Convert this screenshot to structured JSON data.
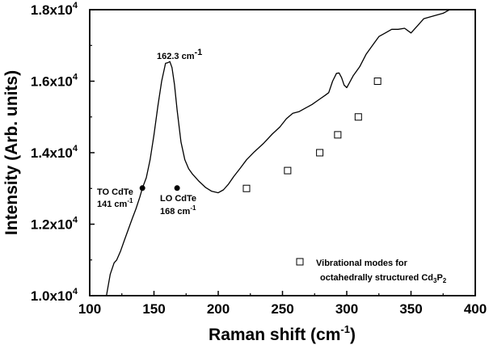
{
  "chart_data": {
    "type": "line",
    "xlabel": "Raman shift (cm",
    "xlabel_sup": "-1",
    "xlabel_close": ")",
    "ylabel": "Intensity (Arb. units)",
    "xlim": [
      100,
      400
    ],
    "ylim": [
      10000,
      18000
    ],
    "x_ticks": [
      100,
      150,
      200,
      250,
      300,
      350,
      400
    ],
    "y_ticks": [
      {
        "value": 10000,
        "mantissa": "1.0x10",
        "exp": "4"
      },
      {
        "value": 12000,
        "mantissa": "1.2x10",
        "exp": "4"
      },
      {
        "value": 14000,
        "mantissa": "1.4x10",
        "exp": "4"
      },
      {
        "value": 16000,
        "mantissa": "1.6x10",
        "exp": "4"
      },
      {
        "value": 18000,
        "mantissa": "1.8x10",
        "exp": "4"
      }
    ],
    "grid": false,
    "legend_position": "bottom-right",
    "series": [
      {
        "style": "line",
        "x": [
          113,
          116,
          119,
          121,
          124,
          127,
          130,
          133,
          136,
          139,
          141,
          144,
          147,
          150,
          153,
          156,
          159,
          161,
          162.3,
          164,
          166,
          168,
          171,
          174,
          177,
          180,
          185,
          190,
          195,
          200,
          204,
          208,
          212,
          217,
          222,
          228,
          235,
          242,
          248,
          253,
          258,
          263,
          268,
          273,
          279,
          283,
          286,
          289,
          292,
          294,
          296,
          298,
          300,
          302,
          305,
          310,
          315,
          320,
          325,
          330,
          335,
          340,
          345,
          350,
          355,
          360,
          365,
          370,
          375,
          380
        ],
        "y": [
          10000,
          10600,
          10920,
          11000,
          11250,
          11550,
          11850,
          12150,
          12430,
          12760,
          13010,
          13300,
          13800,
          14500,
          15300,
          16000,
          16500,
          16520,
          16550,
          16380,
          15900,
          15200,
          14300,
          13800,
          13550,
          13400,
          13200,
          13030,
          12920,
          12880,
          12960,
          13120,
          13330,
          13560,
          13800,
          14020,
          14250,
          14520,
          14720,
          14950,
          15100,
          15150,
          15250,
          15350,
          15500,
          15600,
          15680,
          16000,
          16220,
          16230,
          16100,
          15890,
          15820,
          15950,
          16150,
          16400,
          16750,
          17000,
          17250,
          17350,
          17450,
          17450,
          17480,
          17350,
          17550,
          17750,
          17800,
          17850,
          17900,
          18000
        ]
      },
      {
        "name": "Vibrational modes for octahedrally structured Cd₃P₂",
        "style": "open-square",
        "x": [
          222,
          254,
          279,
          293,
          309,
          324
        ],
        "y": [
          13000,
          13500,
          14000,
          14500,
          15000,
          16000
        ]
      }
    ],
    "points": [
      {
        "label": "TO CdTe",
        "value_label": "141 cm",
        "x": 141,
        "y": 13010
      },
      {
        "label": "LO CdTe",
        "value_label": "168 cm",
        "x": 168,
        "y": 13010
      }
    ],
    "peak_label": {
      "text": "162.3 cm",
      "sup": "-1",
      "x": 162.3,
      "y": 16550
    },
    "legend": {
      "line1": "Vibrational modes for",
      "line2": "octahedrally structured Cd",
      "sub1": "3",
      "mid": "P",
      "sub2": "2"
    }
  }
}
